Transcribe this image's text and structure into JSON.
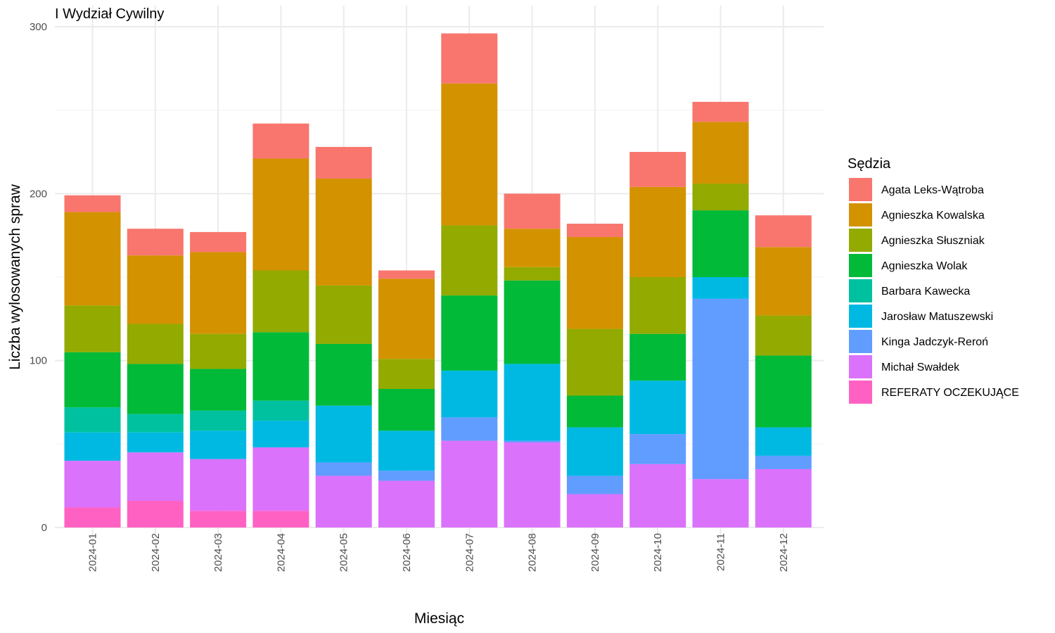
{
  "chart_data": {
    "type": "bar",
    "stacked": true,
    "title": "I Wydział Cywilny",
    "xlabel": "Miesiąc",
    "ylabel": "Liczba wylosowanych spraw",
    "ylim": [
      0,
      300
    ],
    "yticks": [
      0,
      100,
      200,
      300
    ],
    "grid": true,
    "legend_title": "Sędzia",
    "legend_position": "right",
    "categories": [
      "2024-01",
      "2024-02",
      "2024-03",
      "2024-04",
      "2024-05",
      "2024-06",
      "2024-07",
      "2024-08",
      "2024-09",
      "2024-10",
      "2024-11",
      "2024-12"
    ],
    "series": [
      {
        "name": "Agata Leks-Wątroba",
        "color": "#F8766D",
        "values": [
          10,
          16,
          12,
          21,
          19,
          5,
          30,
          21,
          8,
          21,
          12,
          19
        ]
      },
      {
        "name": "Agnieszka Kowalska",
        "color": "#D39200",
        "values": [
          56,
          41,
          49,
          67,
          64,
          48,
          85,
          23,
          55,
          54,
          37,
          41
        ]
      },
      {
        "name": "Agnieszka Słuszniak",
        "color": "#93AA00",
        "values": [
          28,
          24,
          21,
          37,
          35,
          18,
          42,
          8,
          40,
          34,
          16,
          24
        ]
      },
      {
        "name": "Agnieszka Wolak",
        "color": "#00BA38",
        "values": [
          33,
          30,
          25,
          41,
          37,
          25,
          45,
          50,
          19,
          28,
          40,
          43
        ]
      },
      {
        "name": "Barbara Kawecka",
        "color": "#00C19F",
        "values": [
          15,
          11,
          12,
          12,
          0,
          0,
          0,
          0,
          0,
          0,
          0,
          0
        ]
      },
      {
        "name": "Jarosław Matuszewski",
        "color": "#00B9E3",
        "values": [
          17,
          12,
          17,
          16,
          34,
          24,
          28,
          46,
          29,
          32,
          13,
          17
        ]
      },
      {
        "name": "Kinga Jadczyk-Reroń",
        "color": "#619CFF",
        "values": [
          0,
          0,
          0,
          0,
          8,
          6,
          14,
          1,
          11,
          18,
          108,
          8
        ]
      },
      {
        "name": "Michał Swałdek",
        "color": "#DB72FB",
        "values": [
          28,
          29,
          31,
          38,
          31,
          28,
          52,
          51,
          20,
          38,
          29,
          35
        ]
      },
      {
        "name": "REFERATY OCZEKUJĄCE",
        "color": "#FF61C3",
        "values": [
          12,
          16,
          10,
          10,
          0,
          0,
          0,
          0,
          0,
          0,
          0,
          0
        ]
      }
    ]
  }
}
